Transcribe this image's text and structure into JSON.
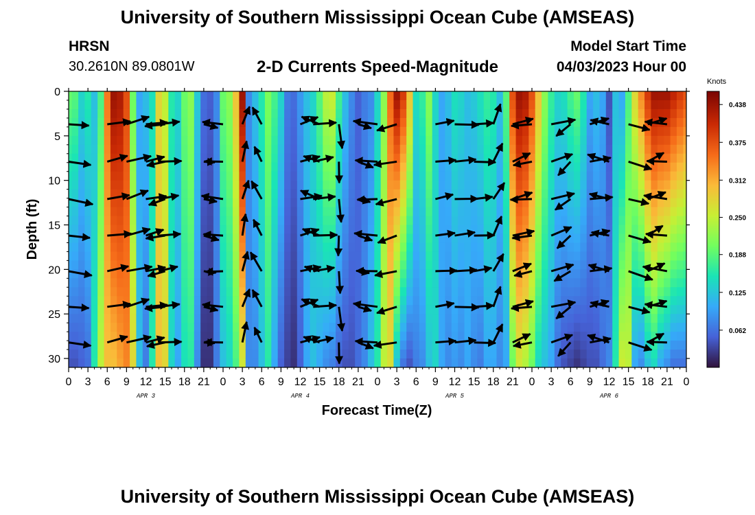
{
  "title": "University of Southern Mississippi Ocean Cube (AMSEAS)",
  "station": {
    "name": "HRSN",
    "coords": "30.2610N  89.0801W"
  },
  "product": "2-D Currents Speed-Magnitude",
  "model_start": {
    "label": "Model Start Time",
    "value": "04/03/2023 Hour 00"
  },
  "colorbar": {
    "units": "Knots",
    "ticks": [
      "0.438",
      "0.375",
      "0.312",
      "0.250",
      "0.188",
      "0.125",
      "0.062"
    ],
    "tick_values": [
      0.438,
      0.375,
      0.312,
      0.25,
      0.188,
      0.125,
      0.062
    ],
    "range": [
      0,
      0.46
    ],
    "colors": [
      "#30123b",
      "#4662d7",
      "#36aaf9",
      "#1ae4b6",
      "#72fe5e",
      "#c8ef34",
      "#faba39",
      "#f66b19",
      "#ca2a04",
      "#7a0403"
    ]
  },
  "chart_data": {
    "type": "heatmap",
    "title": "2-D Currents Speed-Magnitude",
    "xlabel": "Forecast Time(Z)",
    "ylabel": "Depth (ft)",
    "x_ticks": [
      "0",
      "3",
      "6",
      "9",
      "12",
      "15",
      "18",
      "21",
      "0",
      "3",
      "6",
      "9",
      "12",
      "15",
      "18",
      "21",
      "0",
      "3",
      "6",
      "9",
      "12",
      "15",
      "18",
      "21",
      "0",
      "3",
      "6",
      "9",
      "12",
      "15",
      "18",
      "21",
      "0"
    ],
    "x_range_hours": [
      0,
      96
    ],
    "y_ticks": [
      "0",
      "5",
      "10",
      "15",
      "20",
      "25",
      "30"
    ],
    "y_range_ft": [
      0,
      31
    ],
    "day_labels": [
      {
        "label": "APR 3",
        "hour": 12
      },
      {
        "label": "APR 4",
        "hour": 36
      },
      {
        "label": "APR 5",
        "hour": 60
      },
      {
        "label": "APR 6",
        "hour": 84
      }
    ],
    "speed_profile": {
      "hours": [
        0,
        1,
        2,
        3,
        4,
        5,
        6,
        7,
        8,
        9,
        10,
        11,
        12,
        13,
        14,
        15,
        16,
        17,
        18,
        19,
        20,
        21,
        22,
        23,
        24,
        25,
        26,
        27,
        28,
        29,
        30,
        31,
        32,
        33,
        34,
        35,
        36,
        37,
        38,
        39,
        40,
        41,
        42,
        43,
        44,
        45,
        46,
        47,
        48,
        49,
        50,
        51,
        52,
        53,
        54,
        55,
        56,
        57,
        58,
        59,
        60,
        61,
        62,
        63,
        64,
        65,
        66,
        67,
        68,
        69,
        70,
        71,
        72,
        73,
        74,
        75,
        76,
        77,
        78,
        79,
        80,
        81,
        82,
        83,
        84,
        85,
        86,
        87,
        88,
        89,
        90,
        91,
        92,
        93,
        94,
        95,
        96
      ],
      "surface_knots": [
        0.2,
        0.19,
        0.14,
        0.16,
        0.12,
        0.18,
        0.35,
        0.44,
        0.43,
        0.38,
        0.2,
        0.1,
        0.12,
        0.15,
        0.28,
        0.25,
        0.16,
        0.14,
        0.2,
        0.22,
        0.13,
        0.06,
        0.05,
        0.08,
        0.2,
        0.22,
        0.3,
        0.44,
        0.08,
        0.12,
        0.16,
        0.21,
        0.18,
        0.14,
        0.07,
        0.06,
        0.09,
        0.12,
        0.14,
        0.19,
        0.25,
        0.26,
        0.18,
        0.12,
        0.08,
        0.05,
        0.07,
        0.08,
        0.14,
        0.22,
        0.36,
        0.44,
        0.4,
        0.3,
        0.15,
        0.17,
        0.22,
        0.14,
        0.1,
        0.12,
        0.15,
        0.14,
        0.12,
        0.13,
        0.15,
        0.17,
        0.16,
        0.12,
        0.19,
        0.38,
        0.44,
        0.43,
        0.38,
        0.3,
        0.22,
        0.17,
        0.14,
        0.15,
        0.18,
        0.2,
        0.16,
        0.1,
        0.12,
        0.1,
        0.04,
        0.12,
        0.1,
        0.18,
        0.28,
        0.34,
        0.4,
        0.44,
        0.44,
        0.44,
        0.42,
        0.4,
        0.38
      ],
      "bottom_knots": [
        0.04,
        0.04,
        0.05,
        0.06,
        0.16,
        0.25,
        0.3,
        0.3,
        0.32,
        0.34,
        0.28,
        0.12,
        0.07,
        0.16,
        0.3,
        0.28,
        0.14,
        0.1,
        0.15,
        0.16,
        0.08,
        0.02,
        0.02,
        0.07,
        0.12,
        0.14,
        0.18,
        0.26,
        0.08,
        0.08,
        0.12,
        0.16,
        0.1,
        0.05,
        0.03,
        0.02,
        0.05,
        0.1,
        0.12,
        0.1,
        0.08,
        0.07,
        0.05,
        0.04,
        0.04,
        0.06,
        0.08,
        0.12,
        0.16,
        0.25,
        0.27,
        0.12,
        0.06,
        0.04,
        0.07,
        0.08,
        0.12,
        0.14,
        0.1,
        0.08,
        0.09,
        0.08,
        0.1,
        0.08,
        0.07,
        0.1,
        0.1,
        0.08,
        0.1,
        0.2,
        0.26,
        0.24,
        0.2,
        0.14,
        0.12,
        0.1,
        0.06,
        0.04,
        0.03,
        0.02,
        0.03,
        0.04,
        0.04,
        0.06,
        0.08,
        0.16,
        0.26,
        0.25,
        0.1,
        0.08,
        0.12,
        0.14,
        0.1,
        0.08,
        0.06,
        0.06,
        0.06
      ]
    },
    "vector_depths_ft": [
      3.7,
      7.9,
      12.1,
      16.2,
      20.2,
      24.2,
      28.2
    ],
    "vectors": [
      {
        "hour": 0,
        "u": 0.34,
        "v": -0.05
      },
      {
        "hour": 6,
        "u": 0.34,
        "v": 0.06
      },
      {
        "hour": 9,
        "u": 0.36,
        "v": 0.1
      },
      {
        "hour": 12,
        "u": 0.3,
        "v": 0.06
      },
      {
        "hour": 14,
        "u": 0.32,
        "v": 0.04
      },
      {
        "hour": 15,
        "u": -0.28,
        "v": -0.06
      },
      {
        "hour": 21,
        "u": 0.2,
        "v": -0.04
      },
      {
        "hour": 24,
        "u": -0.3,
        "v": 0.02
      },
      {
        "hour": 27,
        "u": 0.08,
        "v": 0.3
      },
      {
        "hour": 30,
        "u": -0.14,
        "v": 0.26
      },
      {
        "hour": 36,
        "u": 0.3,
        "v": 0.08
      },
      {
        "hour": 38,
        "u": 0.34,
        "v": 0.04
      },
      {
        "hour": 39,
        "u": -0.26,
        "v": 0.1
      },
      {
        "hour": 42,
        "u": 0.02,
        "v": -0.34
      },
      {
        "hour": 45,
        "u": 0.2,
        "v": -0.06
      },
      {
        "hour": 48,
        "u": -0.34,
        "v": 0.02
      },
      {
        "hour": 51,
        "u": -0.32,
        "v": -0.08
      },
      {
        "hour": 57,
        "u": 0.3,
        "v": 0.04
      },
      {
        "hour": 60,
        "u": 0.34,
        "v": 0.02
      },
      {
        "hour": 63,
        "u": 0.3,
        "v": 0.02
      },
      {
        "hour": 66,
        "u": 0.14,
        "v": 0.28
      },
      {
        "hour": 69,
        "u": 0.3,
        "v": 0.1
      },
      {
        "hour": 72,
        "u": -0.3,
        "v": -0.04
      },
      {
        "hour": 75,
        "u": 0.34,
        "v": 0.1
      },
      {
        "hour": 78,
        "u": -0.22,
        "v": -0.18
      },
      {
        "hour": 81,
        "u": 0.32,
        "v": 0.06
      },
      {
        "hour": 84,
        "u": -0.3,
        "v": 0.08
      },
      {
        "hour": 87,
        "u": 0.34,
        "v": -0.1
      },
      {
        "hour": 90,
        "u": 0.26,
        "v": 0.12
      },
      {
        "hour": 93,
        "u": -0.34,
        "v": 0.04
      }
    ]
  }
}
